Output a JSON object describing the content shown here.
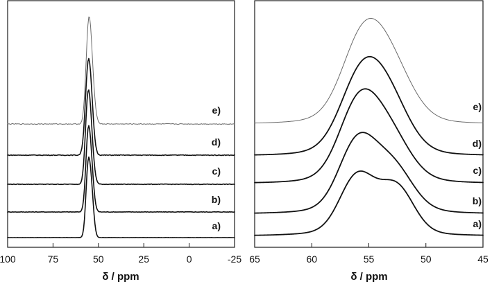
{
  "chart_data": [
    {
      "type": "line",
      "panel": "left",
      "xlabel": "δ / ppm",
      "xlim": [
        100,
        -25
      ],
      "x_reversed": true,
      "xticks": [
        "100",
        "75",
        "50",
        "25",
        "0",
        "-25"
      ],
      "xtick_values": [
        100,
        75,
        50,
        25,
        0,
        -25
      ],
      "grid": false,
      "series": [
        {
          "name": "a)",
          "color": "#111111",
          "peaks": [
            {
              "center": 55.8,
              "height": 1.0,
              "width": 1.2
            },
            {
              "center": 53.9,
              "height": 0.72,
              "width": 1.3
            }
          ],
          "baseline": 0.0,
          "noise": 0.004
        },
        {
          "name": "b)",
          "color": "#111111",
          "peaks": [
            {
              "center": 55.8,
              "height": 1.0,
              "width": 1.3
            },
            {
              "center": 54.0,
              "height": 0.62,
              "width": 1.4
            }
          ],
          "baseline": 0.0,
          "noise": 0.008
        },
        {
          "name": "c)",
          "color": "#111111",
          "peaks": [
            {
              "center": 55.9,
              "height": 1.0,
              "width": 1.4
            },
            {
              "center": 54.1,
              "height": 0.55,
              "width": 1.5
            }
          ],
          "baseline": 0.0,
          "noise": 0.008
        },
        {
          "name": "d)",
          "color": "#111111",
          "peaks": [
            {
              "center": 55.9,
              "height": 1.0,
              "width": 1.5
            },
            {
              "center": 54.1,
              "height": 0.6,
              "width": 1.5
            }
          ],
          "baseline": 0.0,
          "noise": 0.01
        },
        {
          "name": "e)",
          "color": "#6a6a6a",
          "peaks": [
            {
              "center": 55.6,
              "height": 1.0,
              "width": 1.4
            },
            {
              "center": 53.9,
              "height": 0.68,
              "width": 1.6
            }
          ],
          "baseline": 0.0,
          "noise": 0.01
        }
      ]
    },
    {
      "type": "line",
      "panel": "right",
      "xlabel": "δ / ppm",
      "xlim": [
        65,
        45
      ],
      "x_reversed": true,
      "xticks": [
        "65",
        "60",
        "55",
        "50",
        "45"
      ],
      "xtick_values": [
        65,
        60,
        55,
        50,
        45
      ],
      "grid": false,
      "series": [
        {
          "name": "a)",
          "color": "#111111",
          "peaks": [
            {
              "center": 56.0,
              "height": 1.0,
              "width": 1.5
            },
            {
              "center": 52.6,
              "height": 0.82,
              "width": 1.5
            }
          ],
          "baseline": 0.0
        },
        {
          "name": "b)",
          "color": "#111111",
          "peaks": [
            {
              "center": 56.0,
              "height": 1.0,
              "width": 1.6
            },
            {
              "center": 52.9,
              "height": 0.65,
              "width": 1.7
            }
          ],
          "baseline": 0.0
        },
        {
          "name": "c)",
          "color": "#111111",
          "peaks": [
            {
              "center": 55.9,
              "height": 1.0,
              "width": 1.7
            },
            {
              "center": 53.2,
              "height": 0.6,
              "width": 1.8
            }
          ],
          "baseline": 0.0
        },
        {
          "name": "d)",
          "color": "#111111",
          "peaks": [
            {
              "center": 55.7,
              "height": 1.0,
              "width": 1.8
            },
            {
              "center": 53.2,
              "height": 0.66,
              "width": 1.8
            }
          ],
          "baseline": 0.0
        },
        {
          "name": "e)",
          "color": "#6a6a6a",
          "peaks": [
            {
              "center": 55.6,
              "height": 1.0,
              "width": 1.8
            },
            {
              "center": 53.1,
              "height": 0.7,
              "width": 1.9
            }
          ],
          "baseline": 0.0
        }
      ]
    }
  ]
}
